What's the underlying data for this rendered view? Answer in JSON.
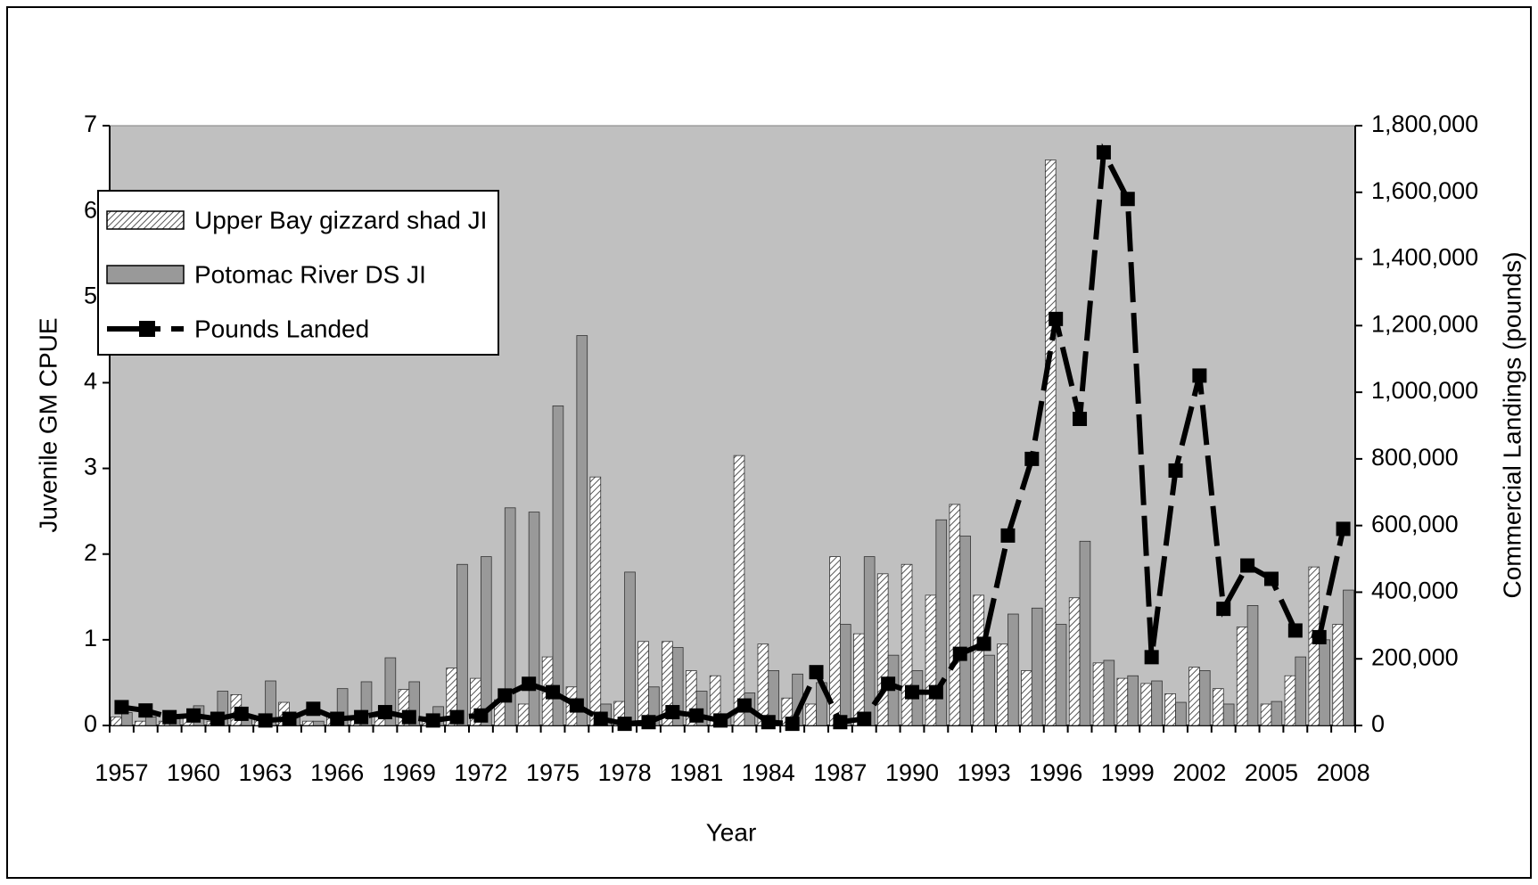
{
  "chart_data": {
    "type": "bar_line",
    "categories": [
      "1957",
      null,
      null,
      "1960",
      null,
      null,
      "1963",
      null,
      null,
      "1966",
      null,
      null,
      "1969",
      null,
      null,
      "1972",
      null,
      null,
      "1975",
      null,
      null,
      "1978",
      null,
      null,
      "1981",
      null,
      null,
      "1984",
      null,
      null,
      "1987",
      null,
      null,
      "1990",
      null,
      null,
      "1993",
      null,
      null,
      "1996",
      null,
      null,
      "1999",
      null,
      null,
      "2002",
      null,
      null,
      "2005",
      null,
      null,
      "2008"
    ],
    "x_label": "Year",
    "y_label": "Juvenile GM CPUE",
    "y2_label": "Commercial Landings (pounds)",
    "ylim": [
      0,
      7
    ],
    "yticks": [
      0,
      1,
      2,
      3,
      4,
      5,
      6,
      7
    ],
    "y2lim": [
      0,
      1800000
    ],
    "y2ticks": [
      0,
      {
        "value": 200000,
        "label": "200,000"
      },
      {
        "value": 400000,
        "label": "400,000"
      },
      {
        "value": 600000,
        "label": "600,000"
      },
      {
        "value": 800000,
        "label": "800,000"
      },
      {
        "value": 1000000,
        "label": "1,000,000"
      },
      {
        "value": 1200000,
        "label": "1,200,000"
      },
      {
        "value": 1400000,
        "label": "1,400,000"
      },
      {
        "value": 1600000,
        "label": "1,600,000"
      },
      {
        "value": 1800000,
        "label": "1,800,000"
      }
    ],
    "background": "#c0c0c0",
    "legend": "upper left",
    "series": [
      {
        "name": "Upper Bay gizzard shad JI",
        "kind": "bar",
        "color": "#ffffff",
        "hatch": true,
        "values": [
          0.1,
          0.05,
          0.05,
          0.1,
          0.05,
          0.36,
          0.1,
          0.27,
          0.05,
          0.1,
          0.1,
          0.1,
          0.42,
          0.1,
          0.67,
          0.55,
          0.3,
          0.25,
          0.8,
          0.45,
          2.9,
          0.28,
          0.98,
          0.98,
          0.64,
          0.58,
          3.15,
          0.95,
          0.32,
          0.25,
          1.97,
          1.07,
          1.77,
          1.88,
          1.52,
          2.58,
          1.52,
          0.95,
          0.64,
          6.6,
          1.49,
          0.73,
          0.55,
          0.49,
          0.37,
          0.68,
          0.43,
          1.15,
          0.25,
          0.58,
          1.85,
          1.18
        ]
      },
      {
        "name": "Potomac River DS JI",
        "kind": "bar",
        "color": "#999999",
        "values": [
          0.15,
          0.1,
          0.1,
          0.23,
          0.4,
          0.1,
          0.52,
          0.1,
          0.05,
          0.43,
          0.51,
          0.79,
          0.51,
          0.22,
          1.88,
          1.97,
          2.54,
          2.49,
          3.73,
          4.55,
          0.25,
          1.79,
          0.45,
          0.91,
          0.4,
          0.1,
          0.38,
          0.64,
          0.6,
          0.5,
          1.18,
          1.97,
          0.82,
          0.64,
          2.4,
          2.21,
          0.82,
          1.3,
          1.37,
          1.18,
          2.15,
          0.76,
          0.58,
          0.52,
          0.27,
          0.64,
          0.25,
          1.4,
          0.28,
          0.8,
          1.0,
          1.58
        ]
      },
      {
        "name": "Pounds Landed",
        "kind": "line",
        "color": "#000000",
        "axis": "y2",
        "values": [
          55000,
          45000,
          25000,
          30000,
          20000,
          35000,
          15000,
          20000,
          50000,
          20000,
          25000,
          40000,
          25000,
          15000,
          25000,
          30000,
          90000,
          125000,
          100000,
          60000,
          20000,
          5000,
          10000,
          40000,
          30000,
          15000,
          60000,
          10000,
          5000,
          160000,
          10000,
          20000,
          125000,
          100000,
          100000,
          215000,
          245000,
          570000,
          800000,
          1220000,
          920000,
          1720000,
          1580000,
          205000,
          765000,
          1050000,
          350000,
          480000,
          440000,
          285000,
          265000,
          590000
        ]
      }
    ]
  }
}
